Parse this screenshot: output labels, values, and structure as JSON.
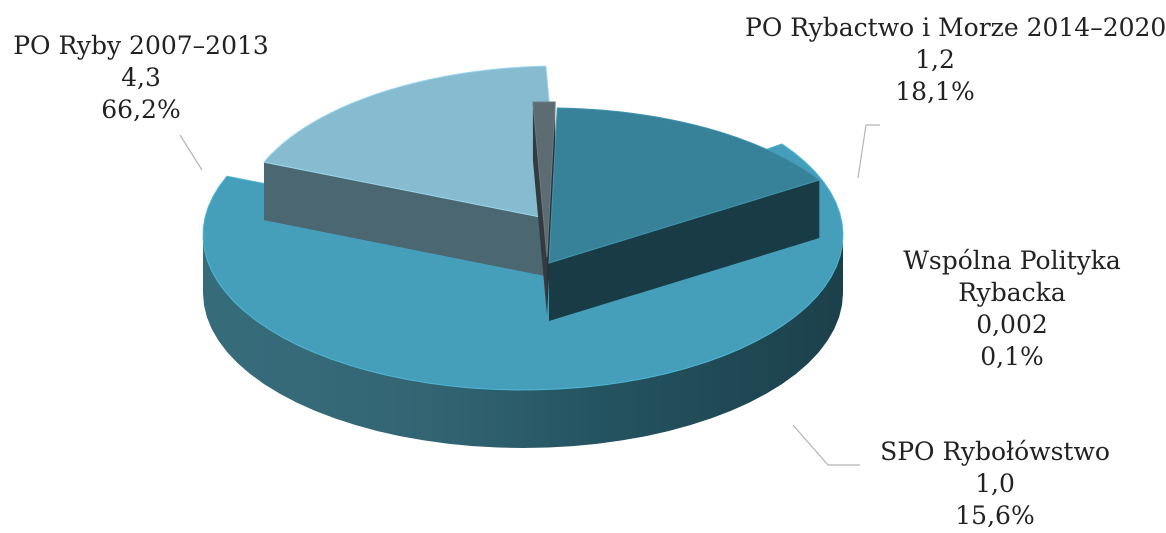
{
  "chart_data": {
    "type": "pie",
    "style": "3d-exploded",
    "title": "",
    "slices": [
      {
        "name": "PO Ryby 2007–2013",
        "value": "4,3",
        "percent": "66,2%",
        "color": "#459fba"
      },
      {
        "name": "PO Rybactwo i Morze 2014–2020",
        "value": "1,2",
        "percent": "18,1%",
        "color": "#86bbd0"
      },
      {
        "name": "Wspólna Polityka Rybacka",
        "value": "0,002",
        "percent": "0,1%",
        "color": "#5d6b72"
      },
      {
        "name": "SPO Rybołówstwo",
        "value": "1,0",
        "percent": "15,6%",
        "color": "#388299"
      }
    ],
    "slice_percent_values": [
      66.2,
      18.1,
      0.1,
      15.6
    ]
  },
  "labels": {
    "po_ryby": {
      "line1": "PO Ryby 2007–2013",
      "line2": "4,3",
      "line3": "66,2%"
    },
    "po_rybactwo": {
      "line1": "PO Rybactwo i Morze 2014–2020",
      "line2": "1,2",
      "line3": "18,1%"
    },
    "wpr": {
      "line1": "Wspólna Polityka",
      "line2": "Rybacka",
      "line3": "0,002",
      "line4": "0,1%"
    },
    "spo": {
      "line1": "SPO Rybołówstwo",
      "line2": "1,0",
      "line3": "15,6%"
    }
  }
}
